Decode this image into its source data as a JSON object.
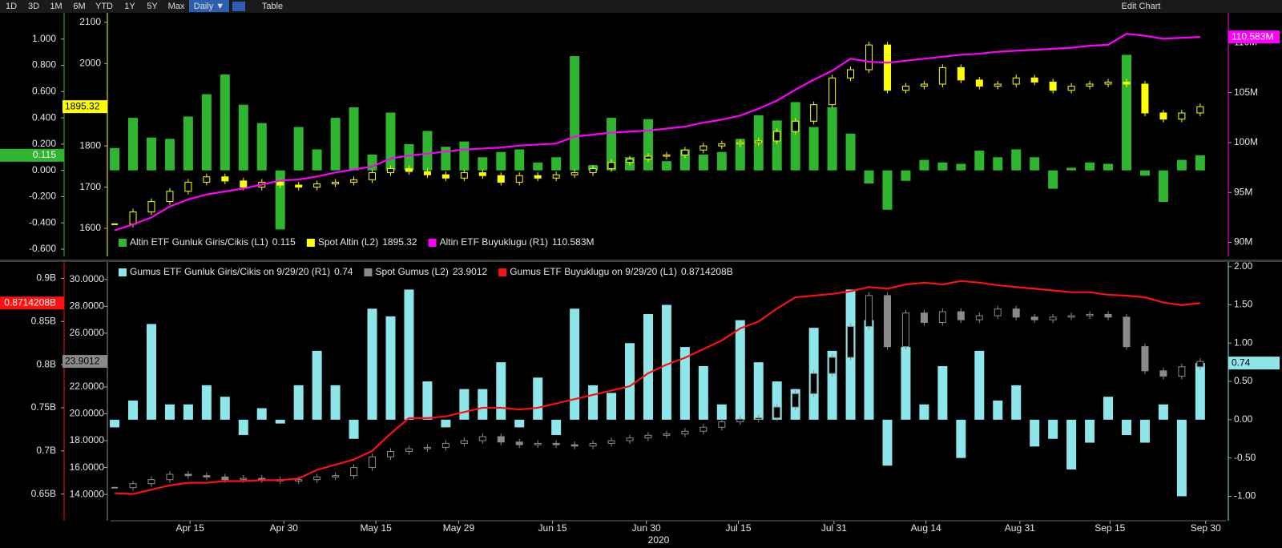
{
  "toolbar": {
    "buttons": [
      "1D",
      "3D",
      "1M",
      "6M",
      "YTD",
      "1Y",
      "5Y",
      "Max",
      "Daily ▼",
      "Table"
    ],
    "edit": "Edit Chart"
  },
  "chart_data": [
    {
      "type": "combo",
      "xlim": [
        -0.22,
        60.4
      ],
      "ylim": [
        -0.655,
        1.2
      ],
      "yticks": [
        {
          "value": -0.6,
          "label": "-0.600"
        },
        {
          "value": -0.4,
          "label": "-0.400"
        },
        {
          "value": -0.2,
          "label": "-0.200"
        },
        {
          "value": 0,
          "label": "0.000"
        },
        {
          "value": 0.2,
          "label": "0.200"
        },
        {
          "value": 0.4,
          "label": "0.400"
        },
        {
          "value": 0.6,
          "label": "0.600"
        },
        {
          "value": 0.8,
          "label": "0.800"
        },
        {
          "value": 1.0,
          "label": "1.000"
        }
      ],
      "y3lim": [
        1532,
        2123
      ],
      "y3ticks": [
        1600,
        1700,
        1800,
        1900,
        2000,
        2100
      ],
      "y2lim": [
        88.6,
        113
      ],
      "y2ticks": [
        {
          "value": 90,
          "label": "90M"
        },
        {
          "value": 95,
          "label": "95M"
        },
        {
          "value": 100,
          "label": "100M"
        },
        {
          "value": 105,
          "label": "105M"
        },
        {
          "value": 110,
          "label": "110M"
        }
      ],
      "series": [
        {
          "name": "Altin ETF Gunluk Giris/Cikis (L1)",
          "kind": "bar",
          "axis": "y",
          "color": "#2fb52f",
          "values": [
            0.17,
            0.4,
            0.25,
            0.24,
            0.41,
            0.58,
            0.73,
            0.5,
            0.36,
            -0.45,
            0.33,
            0.16,
            0.4,
            0.48,
            0.12,
            0.44,
            0.2,
            0.3,
            0.18,
            0.22,
            0.1,
            0.14,
            0.16,
            0.06,
            0.1,
            0.87,
            0.04,
            0.4,
            0.1,
            0.39,
            0.07,
            0.16,
            0.12,
            0.14,
            0.24,
            0.42,
            0.38,
            0.52,
            0.33,
            0.48,
            0.28,
            -0.1,
            -0.3,
            -0.08,
            0.08,
            0.06,
            0.05,
            0.15,
            0.1,
            0.16,
            0.1,
            -0.14,
            0.02,
            0.06,
            0.05,
            0.88,
            -0.04,
            -0.24,
            0.08,
            0.115
          ]
        },
        {
          "name": "Spot Altin (L2)",
          "kind": "candle",
          "axis": "y3",
          "color": "#ffff00",
          "values": [
            1610,
            1640,
            1665,
            1690,
            1712,
            1725,
            1715,
            1700,
            1712,
            1705,
            1700,
            1708,
            1712,
            1718,
            1735,
            1745,
            1738,
            1730,
            1722,
            1735,
            1728,
            1712,
            1728,
            1722,
            1730,
            1735,
            1745,
            1760,
            1768,
            1775,
            1778,
            1790,
            1800,
            1805,
            1808,
            1812,
            1835,
            1860,
            1900,
            1965,
            1985,
            2045,
            1935,
            1945,
            1950,
            1990,
            1960,
            1945,
            1950,
            1965,
            1955,
            1935,
            1945,
            1950,
            1955,
            1950,
            1880,
            1865,
            1880,
            1895.32
          ]
        },
        {
          "name": "Altin ETF Buyuklugu (R1)",
          "kind": "line",
          "axis": "y2",
          "color": "#ff00ff",
          "last_value_label": "110.583M",
          "values": [
            91.2,
            91.8,
            92.5,
            93.6,
            94.3,
            94.8,
            95.1,
            95.4,
            95.8,
            96.2,
            96.3,
            96.6,
            97.0,
            97.3,
            97.6,
            98.4,
            98.7,
            98.9,
            99.1,
            99.3,
            99.4,
            99.5,
            99.7,
            99.8,
            99.9,
            100.6,
            100.8,
            101.0,
            101.1,
            101.2,
            101.4,
            101.6,
            102.0,
            102.3,
            102.7,
            103.4,
            104.2,
            105.3,
            106.3,
            107.2,
            108.4,
            108.1,
            108.0,
            108.2,
            108.4,
            108.6,
            108.8,
            108.9,
            109.1,
            109.2,
            109.3,
            109.4,
            109.5,
            109.7,
            109.8,
            110.9,
            110.7,
            110.4,
            110.5,
            110.583
          ]
        }
      ]
    },
    {
      "type": "combo",
      "xlim": [
        -0.22,
        60.4
      ],
      "xticks": [
        {
          "value": 4.1,
          "label": "Apr 15"
        },
        {
          "value": 9.2,
          "label": "Apr 30"
        },
        {
          "value": 14.2,
          "label": "May 15"
        },
        {
          "value": 18.7,
          "label": "May 29"
        },
        {
          "value": 23.8,
          "label": "Jun 15"
        },
        {
          "value": 28.9,
          "label": "Jun 30"
        },
        {
          "value": 33.9,
          "label": "Jul 15"
        },
        {
          "value": 39.1,
          "label": "Jul 31"
        },
        {
          "value": 44.1,
          "label": "Aug 14"
        },
        {
          "value": 49.2,
          "label": "Aug 31"
        },
        {
          "value": 54.1,
          "label": "Sep 15"
        },
        {
          "value": 59.3,
          "label": "Sep 30"
        }
      ],
      "xlabel": "2020",
      "ylim": [
        0.619,
        0.919
      ],
      "yticks": [
        {
          "value": 0.65,
          "label": "0.65B"
        },
        {
          "value": 0.7,
          "label": "0.7B"
        },
        {
          "value": 0.75,
          "label": "0.75B"
        },
        {
          "value": 0.8,
          "label": "0.8B"
        },
        {
          "value": 0.85,
          "label": "0.85B"
        },
        {
          "value": 0.9,
          "label": "0.9B"
        }
      ],
      "y3lim": [
        12.04,
        31.3
      ],
      "y3ticks": [
        {
          "value": 14,
          "label": "14.0000"
        },
        {
          "value": 16,
          "label": "16.0000"
        },
        {
          "value": 18,
          "label": "18.0000"
        },
        {
          "value": 20,
          "label": "20.0000"
        },
        {
          "value": 22,
          "label": "22.0000"
        },
        {
          "value": 24,
          "label": "24.0000"
        },
        {
          "value": 26,
          "label": "26.0000"
        },
        {
          "value": 28,
          "label": "28.0000"
        },
        {
          "value": 30,
          "label": "30.0000"
        }
      ],
      "y2lim": [
        -1.32,
        2.06
      ],
      "y2ticks": [
        {
          "value": -1,
          "label": "-1.00"
        },
        {
          "value": -0.5,
          "label": "-0.50"
        },
        {
          "value": 0,
          "label": "0.00"
        },
        {
          "value": 0.5,
          "label": "0.50"
        },
        {
          "value": 1,
          "label": "1.00"
        },
        {
          "value": 1.5,
          "label": "1.50"
        },
        {
          "value": 2,
          "label": "2.00"
        }
      ],
      "series": [
        {
          "name": "Gumus ETF Gunluk Giris/Cikis on 9/29/20 (R1)",
          "kind": "bar",
          "axis": "y2",
          "color": "#8ee6ea",
          "values": [
            -0.1,
            0.25,
            1.25,
            0.2,
            0.2,
            0.45,
            0.3,
            -0.2,
            0.15,
            -0.05,
            0.45,
            0.9,
            0.45,
            -0.25,
            1.45,
            1.35,
            1.7,
            0.5,
            -0.1,
            0.4,
            0.4,
            0.75,
            -0.1,
            0.55,
            -0.2,
            1.45,
            0.45,
            0.35,
            1.0,
            1.38,
            1.5,
            0.95,
            0.7,
            0.2,
            1.3,
            0.75,
            0.5,
            0.4,
            1.2,
            0.9,
            1.7,
            1.3,
            -0.6,
            0.95,
            0.2,
            0.7,
            -0.5,
            0.9,
            0.25,
            0.45,
            -0.35,
            -0.25,
            -0.65,
            -0.3,
            0.3,
            -0.2,
            -0.3,
            0.2,
            -1.0,
            0.74
          ]
        },
        {
          "name": "Spot Gumus (L2)",
          "kind": "candle",
          "axis": "y3",
          "color": "#8a8a8a",
          "values": [
            14.5,
            14.8,
            15.1,
            15.5,
            15.4,
            15.3,
            15.1,
            15.2,
            15.1,
            15.0,
            15.1,
            15.3,
            15.4,
            16.0,
            16.8,
            17.2,
            17.4,
            17.5,
            17.8,
            18.0,
            18.3,
            17.9,
            17.7,
            17.8,
            17.7,
            17.6,
            17.8,
            18.0,
            18.2,
            18.4,
            18.5,
            18.7,
            19.0,
            19.4,
            19.6,
            19.7,
            20.5,
            21.5,
            23.0,
            24.2,
            26.5,
            28.8,
            25.0,
            27.5,
            26.8,
            27.6,
            27.0,
            27.3,
            27.8,
            27.2,
            27.0,
            27.2,
            27.3,
            27.4,
            27.2,
            25.0,
            23.2,
            22.8,
            23.5,
            23.9012
          ]
        },
        {
          "name": "Gumus ETF Buyuklugu on 9/29/20 (L1)",
          "kind": "line",
          "axis": "y",
          "color": "#ff1010",
          "last_value_label": "0.8714208B",
          "values": [
            0.651,
            0.65,
            0.655,
            0.66,
            0.663,
            0.663,
            0.665,
            0.665,
            0.666,
            0.666,
            0.668,
            0.678,
            0.684,
            0.69,
            0.7,
            0.72,
            0.738,
            0.738,
            0.74,
            0.745,
            0.75,
            0.75,
            0.748,
            0.75,
            0.755,
            0.76,
            0.765,
            0.77,
            0.775,
            0.79,
            0.8,
            0.808,
            0.818,
            0.828,
            0.842,
            0.85,
            0.865,
            0.878,
            0.88,
            0.882,
            0.885,
            0.89,
            0.888,
            0.893,
            0.895,
            0.893,
            0.897,
            0.895,
            0.892,
            0.89,
            0.888,
            0.886,
            0.884,
            0.884,
            0.881,
            0.88,
            0.878,
            0.872,
            0.869,
            0.8714208
          ]
        }
      ]
    }
  ]
}
